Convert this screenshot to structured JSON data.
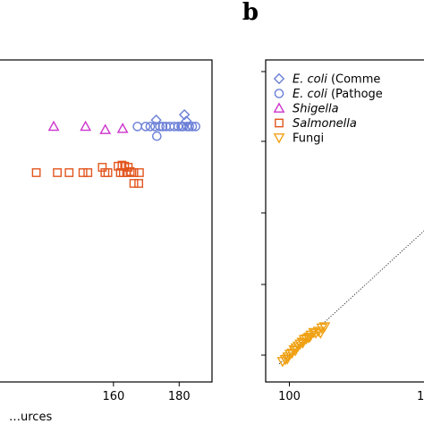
{
  "panel_labels": {
    "right": "b"
  },
  "chart_data": [
    {
      "type": "scatter",
      "title": "",
      "xlabel": "…urces",
      "ylabel": "",
      "xlim": [
        120,
        190
      ],
      "ylim": [
        0,
        30
      ],
      "x_ticks": [
        160,
        180
      ],
      "legend": "none",
      "grid": false,
      "series": [
        {
          "marker": "diamond",
          "color": "#6b7fd7",
          "points": [
            [
              173,
              24.4
            ],
            [
              181.6,
              24.9
            ],
            [
              182.2,
              24.3
            ]
          ]
        },
        {
          "marker": "circle",
          "color": "#6b7fd7",
          "points": [
            [
              167.3,
              23.8
            ],
            [
              169.8,
              23.8
            ],
            [
              171.2,
              23.8
            ],
            [
              172.7,
              23.8
            ],
            [
              173.2,
              22.9
            ],
            [
              174.1,
              23.8
            ],
            [
              175.0,
              23.8
            ],
            [
              176.0,
              23.8
            ],
            [
              177.2,
              23.8
            ],
            [
              178.5,
              23.8
            ],
            [
              179.7,
              23.8
            ],
            [
              180.6,
              23.8
            ],
            [
              181.2,
              23.8
            ],
            [
              182.4,
              23.8
            ],
            [
              183.1,
              23.8
            ],
            [
              184.0,
              23.8
            ],
            [
              185.0,
              23.8
            ]
          ]
        },
        {
          "marker": "triangle-up",
          "color": "#cc33cc",
          "points": [
            [
              141.8,
              23.8
            ],
            [
              151.5,
              23.8
            ],
            [
              157.5,
              23.5
            ],
            [
              162.8,
              23.6
            ]
          ]
        },
        {
          "marker": "square",
          "color": "#e2551e",
          "points": [
            [
              136.5,
              19.5
            ],
            [
              142.9,
              19.5
            ],
            [
              146.5,
              19.5
            ],
            [
              150.7,
              19.5
            ],
            [
              152.2,
              19.5
            ],
            [
              156.6,
              20.0
            ],
            [
              157.4,
              19.5
            ],
            [
              158.3,
              19.5
            ],
            [
              161.4,
              20.1
            ],
            [
              162.1,
              19.5
            ],
            [
              162.6,
              20.2
            ],
            [
              163.0,
              19.5
            ],
            [
              163.4,
              20.1
            ],
            [
              164.0,
              19.5
            ],
            [
              164.5,
              20.0
            ],
            [
              165.1,
              19.6
            ],
            [
              166.2,
              19.5
            ],
            [
              166.2,
              18.5
            ],
            [
              167.7,
              18.5
            ],
            [
              167.9,
              19.5
            ]
          ]
        }
      ]
    },
    {
      "type": "scatter",
      "title": "",
      "xlabel": "",
      "ylabel": "",
      "xlim": [
        96.5,
        122
      ],
      "ylim": [
        0,
        50
      ],
      "x_ticks": [
        100
      ],
      "x_tick_partial": "1",
      "legend": "top-left",
      "grid": false,
      "series": [
        {
          "name_parts": [
            "E. coli",
            " (Comme"
          ],
          "marker": "diamond",
          "color": "#6b7fd7",
          "points": []
        },
        {
          "name_parts": [
            "E. coli",
            " (Pathoge"
          ],
          "marker": "circle",
          "color": "#6b7fd7",
          "points": []
        },
        {
          "name_parts": [
            "Shigella",
            ""
          ],
          "marker": "triangle-up",
          "color": "#cc33cc",
          "points": []
        },
        {
          "name_parts": [
            "Salmonella",
            ""
          ],
          "marker": "square",
          "color": "#e2551e",
          "points": []
        },
        {
          "name_parts": [
            "",
            "Fungi"
          ],
          "marker": "triangle-down",
          "color": "#f0a113",
          "points": [
            [
              99.0,
              3.2
            ],
            [
              99.4,
              3.5
            ],
            [
              99.8,
              3.9
            ],
            [
              100.1,
              4.3
            ],
            [
              100.4,
              4.5
            ],
            [
              100.7,
              5.0
            ],
            [
              101.0,
              5.3
            ],
            [
              101.3,
              5.6
            ],
            [
              101.6,
              5.9
            ],
            [
              101.9,
              6.2
            ],
            [
              102.2,
              6.6
            ],
            [
              102.5,
              6.7
            ],
            [
              102.8,
              6.9
            ],
            [
              103.2,
              7.3
            ],
            [
              103.6,
              7.7
            ],
            [
              103.9,
              7.6
            ],
            [
              104.3,
              7.9
            ],
            [
              104.8,
              8.4
            ],
            [
              105.2,
              8.6
            ],
            [
              99.7,
              3.6
            ],
            [
              100.9,
              4.9
            ],
            [
              102.0,
              6.1
            ],
            [
              103.0,
              7.0
            ],
            [
              104.6,
              7.6
            ]
          ]
        }
      ],
      "reference_line": {
        "style": "dotted",
        "color": "#333333",
        "from": [
          98.5,
          2.8
        ],
        "to": [
          122,
          25.5
        ]
      }
    }
  ]
}
